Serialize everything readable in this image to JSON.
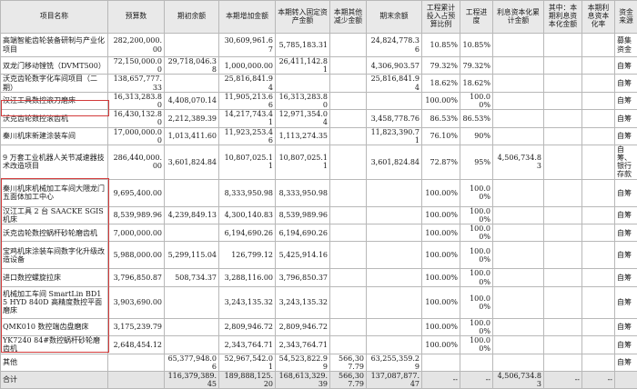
{
  "headers": [
    "项目名称",
    "预算数",
    "期初余额",
    "本期增加金额",
    "本期转入固定资产金额",
    "本期其他减少金额",
    "期末余额",
    "工程累计投入占预算比例",
    "工程进度",
    "利息资本化累计金额",
    "其中：本期利息资本化金额",
    "本期利息资本化率",
    "资金来源"
  ],
  "rows": [
    {
      "name": "高端智能齿轮装备研制与产业化项目",
      "budget": "282,200,000.00",
      "opening": "",
      "increase": "30,609,961.67",
      "to_fixed": "5,785,183.31",
      "other_dec": "",
      "closing": "24,824,778.36",
      "ratio": "10.85%",
      "progress": "10.85%",
      "interest_total": "",
      "interest_current": "",
      "interest_rate": "",
      "source": "募集资金"
    },
    {
      "name": "双龙门移动镗铣（DVMT500）",
      "budget": "72,150,000.00",
      "opening": "29,718,046.38",
      "increase": "1,000,000.00",
      "to_fixed": "26,411,142.81",
      "other_dec": "",
      "closing": "4,306,903.57",
      "ratio": "79.32%",
      "progress": "79.32%",
      "interest_total": "",
      "interest_current": "",
      "interest_rate": "",
      "source": "自筹"
    },
    {
      "name": "沃克齿轮数字化车间项目（二期）",
      "budget": "138,657,777.33",
      "opening": "",
      "increase": "25,816,841.94",
      "to_fixed": "",
      "other_dec": "",
      "closing": "25,816,841.94",
      "ratio": "18.62%",
      "progress": "18.62%",
      "interest_total": "",
      "interest_current": "",
      "interest_rate": "",
      "source": "自筹"
    },
    {
      "name": "汉江工具数控滚刀磨床",
      "budget": "16,313,283.80",
      "opening": "4,408,070.14",
      "increase": "11,905,213.66",
      "to_fixed": "16,313,283.80",
      "other_dec": "",
      "closing": "",
      "ratio": "100.00%",
      "progress": "100.00%",
      "interest_total": "",
      "interest_current": "",
      "interest_rate": "",
      "source": "自筹"
    },
    {
      "name": "沃克齿轮数控滚齿机",
      "budget": "16,430,132.80",
      "opening": "2,212,389.39",
      "increase": "14,217,743.41",
      "to_fixed": "12,971,354.04",
      "other_dec": "",
      "closing": "3,458,778.76",
      "ratio": "86.53%",
      "progress": "86.53%",
      "interest_total": "",
      "interest_current": "",
      "interest_rate": "",
      "source": "自筹"
    },
    {
      "name": "秦川机床新建涂装车间",
      "budget": "17,000,000.00",
      "opening": "1,013,411.60",
      "increase": "11,923,253.46",
      "to_fixed": "1,113,274.35",
      "other_dec": "",
      "closing": "11,823,390.71",
      "ratio": "76.10%",
      "progress": "90%",
      "interest_total": "",
      "interest_current": "",
      "interest_rate": "",
      "source": "自筹"
    },
    {
      "name": "9 万套工业机器人关节减速器技术改造项目",
      "budget": "286,440,000.00",
      "opening": "3,601,824.84",
      "increase": "10,807,025.11",
      "to_fixed": "10,807,025.11",
      "other_dec": "",
      "closing": "3,601,824.84",
      "ratio": "72.87%",
      "progress": "95%",
      "interest_total": "4,506,734.83",
      "interest_current": "",
      "interest_rate": "",
      "source": "自筹、银行存款"
    },
    {
      "name": "秦川机床机械加工车间大隈龙门五面体加工中心",
      "budget": "9,695,400.00",
      "opening": "",
      "increase": "8,333,950.98",
      "to_fixed": "8,333,950.98",
      "other_dec": "",
      "closing": "",
      "ratio": "100.00%",
      "progress": "100.00%",
      "interest_total": "",
      "interest_current": "",
      "interest_rate": "",
      "source": "自筹"
    },
    {
      "name": "汉江工具 2 台 SAACKE SGIS 机床",
      "budget": "8,539,989.96",
      "opening": "4,239,849.13",
      "increase": "4,300,140.83",
      "to_fixed": "8,539,989.96",
      "other_dec": "",
      "closing": "",
      "ratio": "100.00%",
      "progress": "100.00%",
      "interest_total": "",
      "interest_current": "",
      "interest_rate": "",
      "source": "自筹"
    },
    {
      "name": "沃克齿轮数控蜗杆砂轮磨齿机",
      "budget": "7,000,000.00",
      "opening": "",
      "increase": "6,194,690.26",
      "to_fixed": "6,194,690.26",
      "other_dec": "",
      "closing": "",
      "ratio": "100.00%",
      "progress": "100.00%",
      "interest_total": "",
      "interest_current": "",
      "interest_rate": "",
      "source": "自筹"
    },
    {
      "name": "宝鸡机床涂装车间数字化升级改造设备",
      "budget": "5,988,000.00",
      "opening": "5,299,115.04",
      "increase": "126,799.12",
      "to_fixed": "5,425,914.16",
      "other_dec": "",
      "closing": "",
      "ratio": "100.00%",
      "progress": "100.00%",
      "interest_total": "",
      "interest_current": "",
      "interest_rate": "",
      "source": "自筹"
    },
    {
      "name": "进口数控螺旋拉床",
      "budget": "3,796,850.87",
      "opening": "508,734.37",
      "increase": "3,288,116.00",
      "to_fixed": "3,796,850.37",
      "other_dec": "",
      "closing": "",
      "ratio": "100.00%",
      "progress": "100.00%",
      "interest_total": "",
      "interest_current": "",
      "interest_rate": "",
      "source": "自筹"
    },
    {
      "name": "机械加工车间 SmartLin BD15 HYD 840D 高精度数控平面磨床",
      "budget": "3,903,690.00",
      "opening": "",
      "increase": "3,243,135.32",
      "to_fixed": "3,243,135.32",
      "other_dec": "",
      "closing": "",
      "ratio": "100.00%",
      "progress": "100.00%",
      "interest_total": "",
      "interest_current": "",
      "interest_rate": "",
      "source": "自筹"
    },
    {
      "name": "QMK010 数控端齿盘磨床",
      "budget": "3,175,239.79",
      "opening": "",
      "increase": "2,809,946.72",
      "to_fixed": "2,809,946.72",
      "other_dec": "",
      "closing": "",
      "ratio": "100.00%",
      "progress": "100.00%",
      "interest_total": "",
      "interest_current": "",
      "interest_rate": "",
      "source": "自筹"
    },
    {
      "name": "YK7240 84#数控蜗杆砂轮磨齿机",
      "budget": "2,648,454.12",
      "opening": "",
      "increase": "2,343,764.71",
      "to_fixed": "2,343,764.71",
      "other_dec": "",
      "closing": "",
      "ratio": "100.00%",
      "progress": "100.00%",
      "interest_total": "",
      "interest_current": "",
      "interest_rate": "",
      "source": "自筹"
    },
    {
      "name": "其他",
      "budget": "",
      "opening": "65,377,948.06",
      "increase": "52,967,542.01",
      "to_fixed": "54,523,822.99",
      "other_dec": "566,307.79",
      "closing": "63,255,359.29",
      "ratio": "",
      "progress": "",
      "interest_total": "",
      "interest_current": "",
      "interest_rate": "",
      "source": "自筹"
    }
  ],
  "total": {
    "name": "合计",
    "budget": "",
    "opening": "116,379,389.45",
    "increase": "189,888,125.20",
    "to_fixed": "168,613,329.39",
    "other_dec": "566,307.79",
    "closing": "137,087,877.47",
    "ratio": "--",
    "progress": "--",
    "interest_total": "4,506,734.83",
    "interest_current": "--",
    "interest_rate": "--",
    "source": ""
  }
}
